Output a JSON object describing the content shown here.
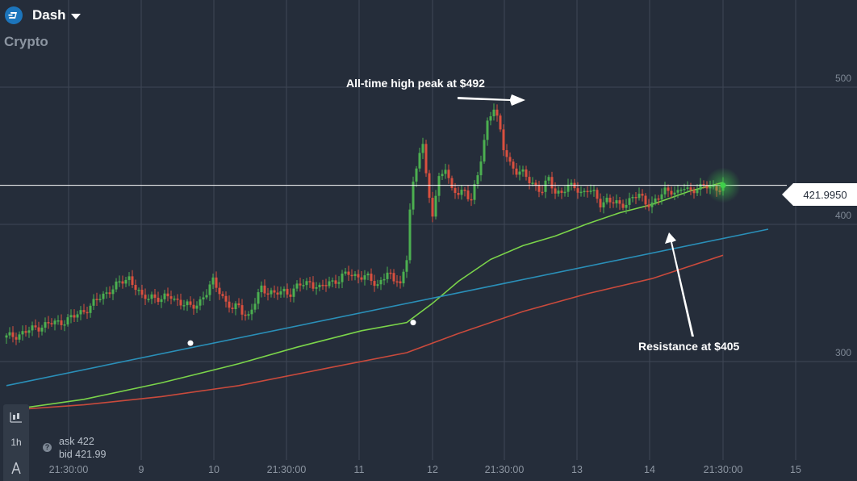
{
  "header": {
    "asset_name": "Dash",
    "category": "Crypto"
  },
  "icons": {
    "coin": "dash-coin-icon",
    "dropdown": "chevron-down-icon",
    "chart_type": "candlestick-icon",
    "tool": "drawing-tool-icon",
    "help": "question-icon"
  },
  "toolbar": {
    "timeframe_label": "1h"
  },
  "quote": {
    "help_label": "?",
    "ask_label": "ask",
    "ask_value": "422",
    "bid_label": "bid",
    "bid_value": "421.99"
  },
  "current_price": "421.9950",
  "annotations": {
    "peak": "All-time high peak at $492",
    "resistance": "Resistance at $405"
  },
  "colors": {
    "background": "#252d3a",
    "candle_up": "#4caf50",
    "candle_down": "#d9503f",
    "ma_fast": "#7bd44a",
    "ma_slow": "#c94a3c",
    "trend_line": "#2a8fb8",
    "grid": "#3e4755",
    "price_line": "#ffffff"
  },
  "chart_data": {
    "type": "candlestick",
    "timeframe": "1h",
    "x_tick_labels": [
      "21:30:00",
      "9",
      "10",
      "21:30:00",
      "11",
      "12",
      "21:30:00",
      "13",
      "14",
      "21:30:00",
      "15"
    ],
    "y_tick_labels": [
      "500",
      "400",
      "300"
    ],
    "ylim": [
      230,
      520
    ],
    "current_price": 421.995,
    "annotated_levels": {
      "all_time_high": 492,
      "resistance": 405
    },
    "close_path": [
      [
        0,
        311
      ],
      [
        6,
        315
      ],
      [
        11,
        320
      ],
      [
        16,
        322
      ],
      [
        21,
        326
      ],
      [
        24,
        331
      ],
      [
        26,
        334
      ],
      [
        29,
        340
      ],
      [
        32,
        346
      ],
      [
        35,
        350
      ],
      [
        38,
        355
      ],
      [
        40,
        348
      ],
      [
        42,
        339
      ],
      [
        45,
        342
      ],
      [
        48,
        338
      ],
      [
        51,
        342
      ],
      [
        54,
        336
      ],
      [
        57,
        333
      ],
      [
        60,
        338
      ],
      [
        62,
        343
      ],
      [
        64,
        352
      ],
      [
        66,
        346
      ],
      [
        68,
        336
      ],
      [
        70,
        331
      ],
      [
        72,
        335
      ],
      [
        74,
        328
      ],
      [
        75,
        326
      ],
      [
        77,
        336
      ],
      [
        79,
        348
      ],
      [
        81,
        345
      ],
      [
        83,
        342
      ],
      [
        86,
        345
      ],
      [
        88,
        344
      ],
      [
        91,
        349
      ],
      [
        94,
        352
      ],
      [
        97,
        346
      ],
      [
        100,
        352
      ],
      [
        103,
        353
      ],
      [
        106,
        358
      ],
      [
        109,
        356
      ],
      [
        112,
        354
      ],
      [
        115,
        350
      ],
      [
        118,
        358
      ],
      [
        120,
        351
      ],
      [
        121,
        355
      ],
      [
        122,
        352
      ],
      [
        123,
        358
      ],
      [
        124,
        368
      ],
      [
        125,
        405
      ],
      [
        126,
        422
      ],
      [
        127,
        432
      ],
      [
        128,
        448
      ],
      [
        129,
        455
      ],
      [
        130,
        430
      ],
      [
        131,
        412
      ],
      [
        132,
        400
      ],
      [
        133,
        413
      ],
      [
        134,
        426
      ],
      [
        136,
        437
      ],
      [
        138,
        418
      ],
      [
        140,
        415
      ],
      [
        142,
        418
      ],
      [
        144,
        413
      ],
      [
        146,
        428
      ],
      [
        147,
        440
      ],
      [
        148,
        454
      ],
      [
        149,
        468
      ],
      [
        150,
        475
      ],
      [
        151,
        480
      ],
      [
        152,
        471
      ],
      [
        153,
        460
      ],
      [
        154,
        448
      ],
      [
        156,
        438
      ],
      [
        158,
        433
      ],
      [
        160,
        430
      ],
      [
        162,
        425
      ],
      [
        164,
        422
      ],
      [
        166,
        418
      ],
      [
        168,
        426
      ],
      [
        170,
        417
      ],
      [
        172,
        418
      ],
      [
        174,
        420
      ],
      [
        176,
        421
      ],
      [
        178,
        417
      ],
      [
        180,
        419
      ],
      [
        182,
        415
      ],
      [
        184,
        409
      ],
      [
        186,
        412
      ],
      [
        188,
        409
      ],
      [
        190,
        407
      ],
      [
        192,
        410
      ],
      [
        194,
        413
      ],
      [
        196,
        414
      ],
      [
        198,
        410
      ],
      [
        200,
        409
      ],
      [
        202,
        412
      ],
      [
        204,
        418
      ],
      [
        206,
        419
      ],
      [
        208,
        416
      ],
      [
        210,
        420
      ],
      [
        212,
        418
      ],
      [
        214,
        421
      ],
      [
        216,
        420
      ],
      [
        218,
        421
      ],
      [
        220,
        420
      ],
      [
        222,
        422
      ]
    ],
    "series": [
      {
        "kind": "moving-average-fast",
        "points": [
          [
            0,
            258
          ],
          [
            24,
            266
          ],
          [
            48,
            278
          ],
          [
            72,
            292
          ],
          [
            90,
            304
          ],
          [
            110,
            316
          ],
          [
            124,
            322
          ],
          [
            132,
            336
          ],
          [
            140,
            352
          ],
          [
            150,
            368
          ],
          [
            160,
            378
          ],
          [
            170,
            385
          ],
          [
            180,
            394
          ],
          [
            190,
            402
          ],
          [
            200,
            408
          ],
          [
            212,
            418
          ],
          [
            222,
            424
          ]
        ]
      },
      {
        "kind": "moving-average-slow",
        "points": [
          [
            0,
            258
          ],
          [
            24,
            262
          ],
          [
            48,
            268
          ],
          [
            72,
            276
          ],
          [
            100,
            289
          ],
          [
            124,
            300
          ],
          [
            140,
            314
          ],
          [
            160,
            330
          ],
          [
            180,
            343
          ],
          [
            200,
            354
          ],
          [
            222,
            371
          ]
        ]
      },
      {
        "kind": "trend-line",
        "points": [
          [
            0,
            276
          ],
          [
            236,
            390
          ]
        ]
      }
    ],
    "markers": [
      [
        57,
        307
      ],
      [
        126,
        322
      ]
    ]
  }
}
